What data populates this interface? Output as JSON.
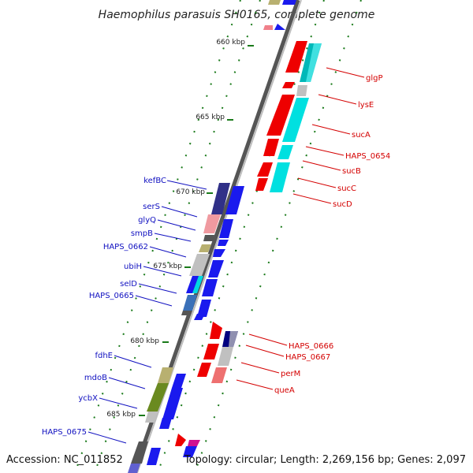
{
  "title": "Haemophilus parasuis SH0165, complete genome",
  "accession": "Accession: NC_011852",
  "summary": "Topology: circular; Length: 2,269,156 bp; Genes: 2,097",
  "ticks": [
    "660 kbp",
    "665 kbp",
    "670 kbp",
    "675 kbp",
    "680 kbp",
    "685 kbp"
  ],
  "forward_labels": [
    "glgP",
    "lysE",
    "sucA",
    "HAPS_0654",
    "sucB",
    "sucC",
    "sucD",
    "HAPS_0666",
    "HAPS_0667",
    "perM",
    "queA"
  ],
  "reverse_labels": [
    "kefBC",
    "serS",
    "glyQ",
    "smpB",
    "HAPS_0662",
    "ubiH",
    "selD",
    "HAPS_0665",
    "fdhE",
    "mdoB",
    "ycbX",
    "HAPS_0675"
  ],
  "colors": {
    "forward_label": "#d40000",
    "reverse_label": "#1010c0",
    "backbone": "#888888",
    "tick": "#1a7a1a"
  }
}
